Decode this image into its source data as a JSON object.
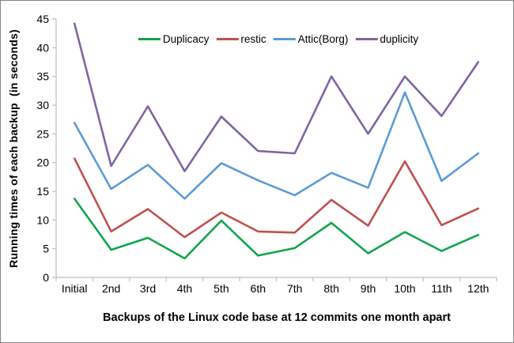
{
  "chart_data": {
    "type": "line",
    "title": "",
    "categories": [
      "Initial",
      "2nd",
      "3rd",
      "4th",
      "5th",
      "6th",
      "7th",
      "8th",
      "9th",
      "10th",
      "11th",
      "12th"
    ],
    "yticks": [
      0,
      5,
      10,
      15,
      20,
      25,
      30,
      35,
      40,
      45
    ],
    "ylim": [
      0,
      45
    ],
    "series": [
      {
        "name": "Duplicacy",
        "color": "#12A54C",
        "values": [
          13.7,
          4.8,
          6.9,
          3.3,
          9.9,
          3.8,
          5.1,
          9.5,
          4.2,
          7.9,
          4.6,
          7.4
        ]
      },
      {
        "name": "restic",
        "color": "#C0504D",
        "values": [
          20.7,
          8.0,
          11.9,
          7.0,
          11.3,
          8.0,
          7.8,
          13.5,
          9.0,
          20.2,
          9.1,
          12.0
        ]
      },
      {
        "name": "Attic(Borg)",
        "color": "#5B9BD5",
        "values": [
          26.9,
          15.4,
          19.6,
          13.7,
          19.9,
          16.9,
          14.3,
          18.2,
          15.6,
          32.2,
          16.8,
          21.6
        ]
      },
      {
        "name": "duplicity",
        "color": "#8064A2",
        "values": [
          44.2,
          19.4,
          29.8,
          18.5,
          28.0,
          22.0,
          21.6,
          35.0,
          25.0,
          35.0,
          28.1,
          37.5
        ]
      }
    ],
    "xlabel": "Backups of the Linux code base at 12 commits one month apart",
    "ylabel": "Running times of each backup  (in seconds)",
    "legend_position": "top-center",
    "grid": false
  },
  "style": {
    "axis_color": "#BFBFBF",
    "text_color": "#000000",
    "background": "#FFFFFF",
    "border_color": "#858585"
  }
}
